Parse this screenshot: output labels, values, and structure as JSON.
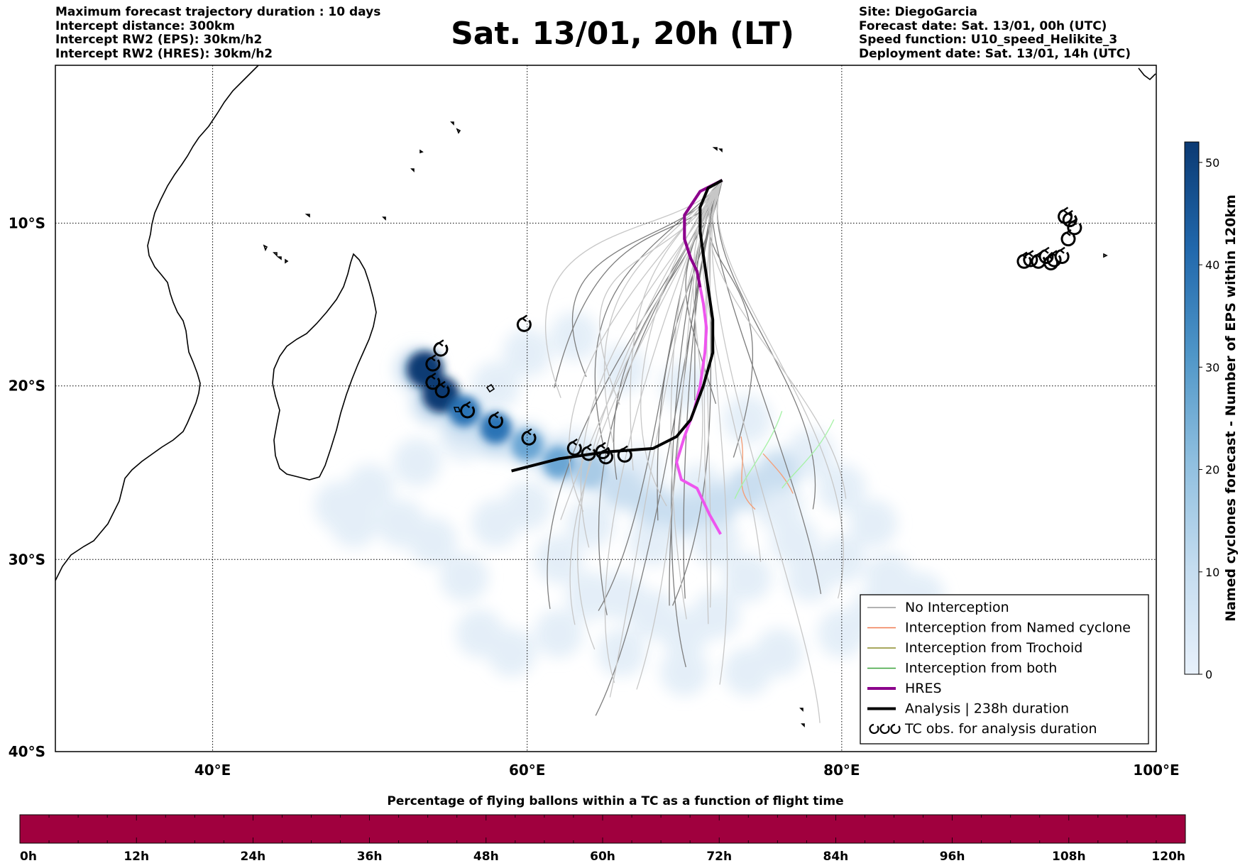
{
  "header_left": [
    "Maximum forecast trajectory duration : 10 days",
    "Intercept distance: 300km",
    "Intercept RW2 (EPS):  30km/h2",
    "Intercept RW2 (HRES): 30km/h2"
  ],
  "title": "Sat. 13/01, 20h (LT)",
  "header_right": [
    "Site: DiegoGarcia",
    "Forecast date: Sat. 13/01, 00h (UTC)",
    "Speed function: U10_speed_Helikite_3",
    "Deployment date: Sat. 13/01, 14h (UTC)"
  ],
  "map": {
    "lon_range": [
      30,
      100
    ],
    "lat_range": [
      -40,
      0
    ],
    "lon_ticks": [
      {
        "value": 40,
        "label": "40°E"
      },
      {
        "value": 60,
        "label": "60°E"
      },
      {
        "value": 80,
        "label": "80°E"
      },
      {
        "value": 100,
        "label": "100°E"
      }
    ],
    "lat_ticks": [
      {
        "value": -10,
        "label": "10°S"
      },
      {
        "value": -20,
        "label": "20°S"
      },
      {
        "value": -30,
        "label": "30°S"
      },
      {
        "value": -40,
        "label": "40°S"
      }
    ],
    "grid": "dotted",
    "deployment_site": {
      "lon": 72.4,
      "lat": -7.3
    },
    "hres_track": [
      [
        72.4,
        -7.3
      ],
      [
        71.0,
        -8.0
      ],
      [
        70.0,
        -9.5
      ],
      [
        70.0,
        -11.0
      ],
      [
        70.4,
        -12.2
      ],
      [
        70.8,
        -13.0
      ],
      [
        71.0,
        -14.0
      ],
      [
        71.2,
        -15.0
      ],
      [
        71.4,
        -16.5
      ],
      [
        71.3,
        -18.0
      ],
      [
        71.0,
        -20.0
      ],
      [
        70.6,
        -21.5
      ],
      [
        70.0,
        -23.0
      ],
      [
        69.5,
        -24.5
      ],
      [
        69.8,
        -25.5
      ],
      [
        70.8,
        -26.0
      ],
      [
        71.6,
        -27.5
      ],
      [
        72.3,
        -28.6
      ]
    ],
    "analysis_track": [
      [
        72.4,
        -7.3
      ],
      [
        71.5,
        -7.8
      ],
      [
        71.0,
        -9.0
      ],
      [
        71.0,
        -10.5
      ],
      [
        71.2,
        -12.0
      ],
      [
        71.5,
        -14.0
      ],
      [
        71.8,
        -16.0
      ],
      [
        71.8,
        -18.0
      ],
      [
        71.2,
        -20.0
      ],
      [
        70.4,
        -22.0
      ],
      [
        69.5,
        -23.0
      ],
      [
        68.0,
        -23.7
      ],
      [
        65.0,
        -23.9
      ],
      [
        62.0,
        -24.3
      ],
      [
        59.0,
        -25.0
      ]
    ],
    "tc_obs": [
      [
        54.0,
        -18.7
      ],
      [
        54.0,
        -19.8
      ],
      [
        54.6,
        -20.3
      ],
      [
        56.2,
        -21.5
      ],
      [
        58.0,
        -22.1
      ],
      [
        60.1,
        -23.1
      ],
      [
        63.0,
        -23.7
      ],
      [
        63.9,
        -24.0
      ],
      [
        64.8,
        -23.9
      ],
      [
        65.0,
        -24.2
      ],
      [
        66.2,
        -24.1
      ],
      [
        54.5,
        -17.8
      ],
      [
        59.8,
        -16.3
      ],
      [
        94.2,
        -9.6
      ],
      [
        94.5,
        -9.8
      ],
      [
        94.8,
        -10.3
      ],
      [
        94.4,
        -11.0
      ],
      [
        94.0,
        -12.1
      ],
      [
        93.5,
        -12.3
      ],
      [
        93.0,
        -12.1
      ],
      [
        92.5,
        -12.4
      ],
      [
        91.6,
        -12.4
      ],
      [
        92.0,
        -12.3
      ],
      [
        93.3,
        -12.5
      ]
    ],
    "density_cores": [
      [
        53.5,
        -19.0
      ],
      [
        54.5,
        -20.5
      ],
      [
        56.0,
        -21.5
      ],
      [
        58.0,
        -22.5
      ],
      [
        60.0,
        -23.5
      ],
      [
        62.0,
        -24.5
      ],
      [
        64.0,
        -25.0
      ]
    ]
  },
  "legend": [
    {
      "label": "No Interception",
      "color": "#999999",
      "style": "line-thin"
    },
    {
      "label": "Interception from Named cyclone",
      "color": "#f07a50",
      "style": "line-thin"
    },
    {
      "label": "Interception from Trochoid",
      "color": "#8b8b2a",
      "style": "line-thin"
    },
    {
      "label": "Interception from both",
      "color": "#3aa13a",
      "style": "line-thin"
    },
    {
      "label": "HRES",
      "color": "#8b008b",
      "style": "line-thick"
    },
    {
      "label": "Analysis | 238h duration",
      "color": "#000000",
      "style": "line-thick"
    },
    {
      "label": "TC obs. for analysis duration",
      "color": "#000000",
      "style": "tc-symbols"
    }
  ],
  "colorbar_right": {
    "label": "Named cyclones forecast - Number of EPS within 120km",
    "ticks": [
      "0",
      "10",
      "20",
      "30",
      "40",
      "50"
    ],
    "range": [
      0,
      52
    ],
    "colors": [
      "#e8f1fb",
      "#c4dcef",
      "#8fbfdf",
      "#4f96c8",
      "#2168ac",
      "#0b3a73"
    ]
  },
  "bottom_bar": {
    "title": "Percentage of flying ballons within a TC as a function of flight time",
    "ticks": [
      "0h",
      "12h",
      "24h",
      "36h",
      "48h",
      "60h",
      "72h",
      "84h",
      "96h",
      "108h",
      "120h"
    ],
    "fill_color": "#a0003e"
  }
}
